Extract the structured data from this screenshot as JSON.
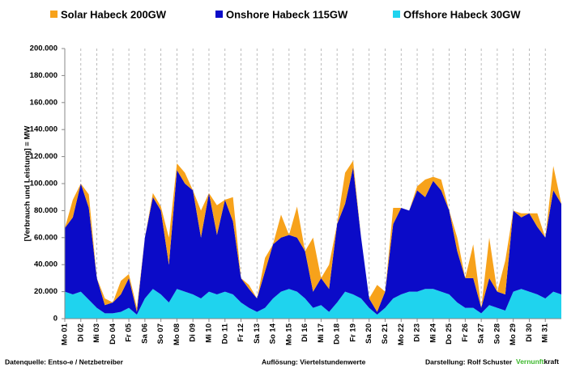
{
  "chart_data": {
    "type": "area",
    "y_label": "[Verbrauch und Leistung] =  MW",
    "ylim": [
      0,
      200000
    ],
    "yticks": [
      0,
      {
        "value": 20000,
        "label": "20.000"
      },
      {
        "value": 40000,
        "label": "40.000"
      },
      {
        "value": 60000,
        "label": "60.000"
      },
      {
        "value": 80000,
        "label": "80.000"
      },
      {
        "value": 100000,
        "label": "100.000"
      },
      {
        "value": 120000,
        "label": "120.000"
      },
      {
        "value": 140000,
        "label": "140.000"
      },
      {
        "value": 160000,
        "label": "160.000"
      },
      {
        "value": 180000,
        "label": "180.000"
      },
      {
        "value": 200000,
        "label": "200.000"
      }
    ],
    "xlim": [
      0,
      31
    ],
    "xticks": [
      {
        "value": 0,
        "label": "Mo 01"
      },
      {
        "value": 1,
        "label": "Di 02"
      },
      {
        "value": 2,
        "label": "Mi 03"
      },
      {
        "value": 3,
        "label": "Do 04"
      },
      {
        "value": 4,
        "label": "Fr 05"
      },
      {
        "value": 5,
        "label": "Sa 06"
      },
      {
        "value": 6,
        "label": "So 07"
      },
      {
        "value": 7,
        "label": "Mo 08"
      },
      {
        "value": 8,
        "label": "Di 09"
      },
      {
        "value": 9,
        "label": "Mi 10"
      },
      {
        "value": 10,
        "label": "Do 11"
      },
      {
        "value": 11,
        "label": "Fr 12"
      },
      {
        "value": 12,
        "label": "Sa 13"
      },
      {
        "value": 13,
        "label": "So 14"
      },
      {
        "value": 14,
        "label": "Mo 15"
      },
      {
        "value": 15,
        "label": "Di 16"
      },
      {
        "value": 16,
        "label": "Mi 17"
      },
      {
        "value": 17,
        "label": "Do 18"
      },
      {
        "value": 18,
        "label": "Fr 19"
      },
      {
        "value": 19,
        "label": "Sa 20"
      },
      {
        "value": 20,
        "label": "So 21"
      },
      {
        "value": 21,
        "label": "Mo 22"
      },
      {
        "value": 22,
        "label": "Di 23"
      },
      {
        "value": 23,
        "label": "Mi 24"
      },
      {
        "value": 24,
        "label": "Do 25"
      },
      {
        "value": 25,
        "label": "Fr 26"
      },
      {
        "value": 26,
        "label": "Sa 27"
      },
      {
        "value": 27,
        "label": "So 28"
      },
      {
        "value": 28,
        "label": "Mo 29"
      },
      {
        "value": 29,
        "label": "Di 30"
      },
      {
        "value": 30,
        "label": "Mi 31"
      }
    ],
    "grid": "x",
    "x": [
      0,
      0.5,
      1,
      1.5,
      2,
      2.5,
      3,
      3.5,
      4,
      4.5,
      5,
      5.5,
      6,
      6.5,
      7,
      7.5,
      8,
      8.5,
      9,
      9.5,
      10,
      10.5,
      11,
      11.5,
      12,
      12.5,
      13,
      13.5,
      14,
      14.5,
      15,
      15.5,
      16,
      16.5,
      17,
      17.5,
      18,
      18.5,
      19,
      19.5,
      20,
      20.5,
      21,
      21.5,
      22,
      22.5,
      23,
      23.5,
      24,
      24.5,
      25,
      25.5,
      26,
      26.5,
      27,
      27.5,
      28,
      28.5,
      29,
      29.5,
      30,
      30.5,
      31
    ],
    "series": [
      {
        "name": "Offshore Habeck 30GW",
        "color": "#1fd3ee",
        "values": [
          20000,
          18000,
          20000,
          14000,
          8000,
          4000,
          4000,
          5000,
          8000,
          3000,
          15000,
          22000,
          18000,
          12000,
          22000,
          20000,
          18000,
          15000,
          20000,
          18000,
          20000,
          18000,
          12000,
          8000,
          5000,
          8000,
          15000,
          20000,
          22000,
          20000,
          15000,
          8000,
          10000,
          5000,
          12000,
          20000,
          18000,
          15000,
          8000,
          3000,
          8000,
          15000,
          18000,
          20000,
          20000,
          22000,
          22000,
          20000,
          18000,
          12000,
          8000,
          8000,
          4000,
          10000,
          8000,
          6000,
          20000,
          22000,
          20000,
          18000,
          15000,
          20000,
          18000
        ]
      },
      {
        "name": "Onshore Habeck 115GW",
        "color": "#0b0bc8",
        "values": [
          47000,
          57000,
          80000,
          68000,
          22000,
          6000,
          8000,
          13000,
          22000,
          2000,
          45000,
          68000,
          62000,
          28000,
          88000,
          80000,
          77000,
          45000,
          73000,
          44000,
          68000,
          54000,
          18000,
          14000,
          10000,
          27000,
          40000,
          40000,
          40000,
          40000,
          35000,
          12000,
          20000,
          17000,
          58000,
          65000,
          94000,
          45000,
          7000,
          2000,
          12000,
          55000,
          64000,
          60000,
          75000,
          68000,
          80000,
          75000,
          62000,
          38000,
          22000,
          22000,
          4000,
          20000,
          12000,
          12000,
          60000,
          53000,
          58000,
          50000,
          45000,
          75000,
          67000
        ]
      },
      {
        "name": "Solar Habeck 200GW",
        "color": "#f7a21b",
        "values": [
          0,
          13000,
          0,
          10000,
          0,
          5000,
          0,
          10000,
          3000,
          3000,
          0,
          3000,
          3000,
          20000,
          5000,
          8000,
          0,
          20000,
          0,
          22000,
          0,
          18000,
          0,
          3000,
          0,
          10000,
          0,
          17000,
          0,
          23000,
          0,
          40000,
          0,
          18000,
          0,
          23000,
          5000,
          0,
          0,
          20000,
          0,
          12000,
          0,
          0,
          3000,
          13000,
          3000,
          8000,
          0,
          10000,
          0,
          25000,
          0,
          30000,
          0,
          25000,
          0,
          3000,
          0,
          10000,
          0,
          18000,
          0
        ]
      }
    ],
    "stack_order": [
      0,
      1,
      2
    ],
    "legend_order": [
      2,
      1,
      0
    ]
  },
  "footer": {
    "source": "Datenquelle: Entso-e  / Netzbetreiber",
    "resolution": "Auflösung: Viertelstundenwerte",
    "author": "Darstellung:  Rolf Schuster",
    "brand_green": "Vernunft",
    "brand_black": "kraft"
  }
}
